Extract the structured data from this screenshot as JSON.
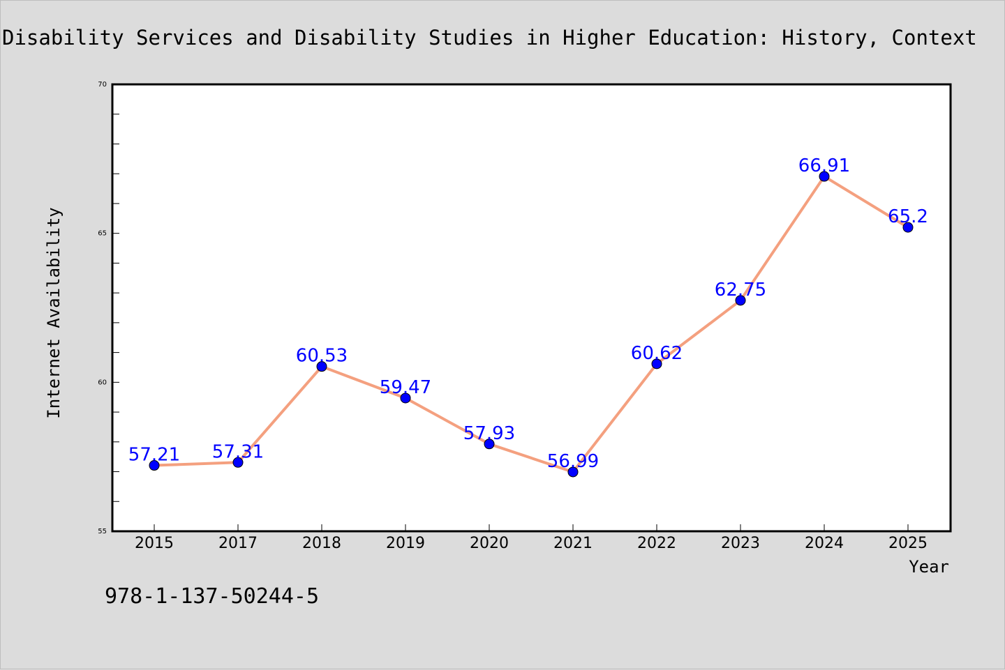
{
  "chart_data": {
    "type": "line",
    "title": "Disability Services and Disability Studies in Higher Education: History, Context",
    "xlabel": "Year",
    "ylabel": "Internet Availability",
    "categories": [
      "2015",
      "2017",
      "2018",
      "2019",
      "2020",
      "2021",
      "2022",
      "2023",
      "2024",
      "2025"
    ],
    "series": [
      {
        "values": [
          57.21,
          57.31,
          60.53,
          59.47,
          57.93,
          56.99,
          60.62,
          62.75,
          66.91,
          65.2
        ],
        "labels": [
          "57.21",
          "57.31",
          "60.53",
          "59.47",
          "57.93",
          "56.99",
          "60.62",
          "62.75",
          "66.91",
          "65.2"
        ]
      }
    ],
    "ylim": [
      55,
      70
    ],
    "yticks": [
      "55",
      "60",
      "65",
      "70"
    ],
    "grid": false,
    "line_color": "#f4a07f",
    "marker_color": "#0000ff",
    "label_color": "#0000ff"
  },
  "footnote": "978-1-137-50244-5",
  "colors": {
    "background": "#dcdcdc",
    "plot_background": "#ffffff"
  }
}
